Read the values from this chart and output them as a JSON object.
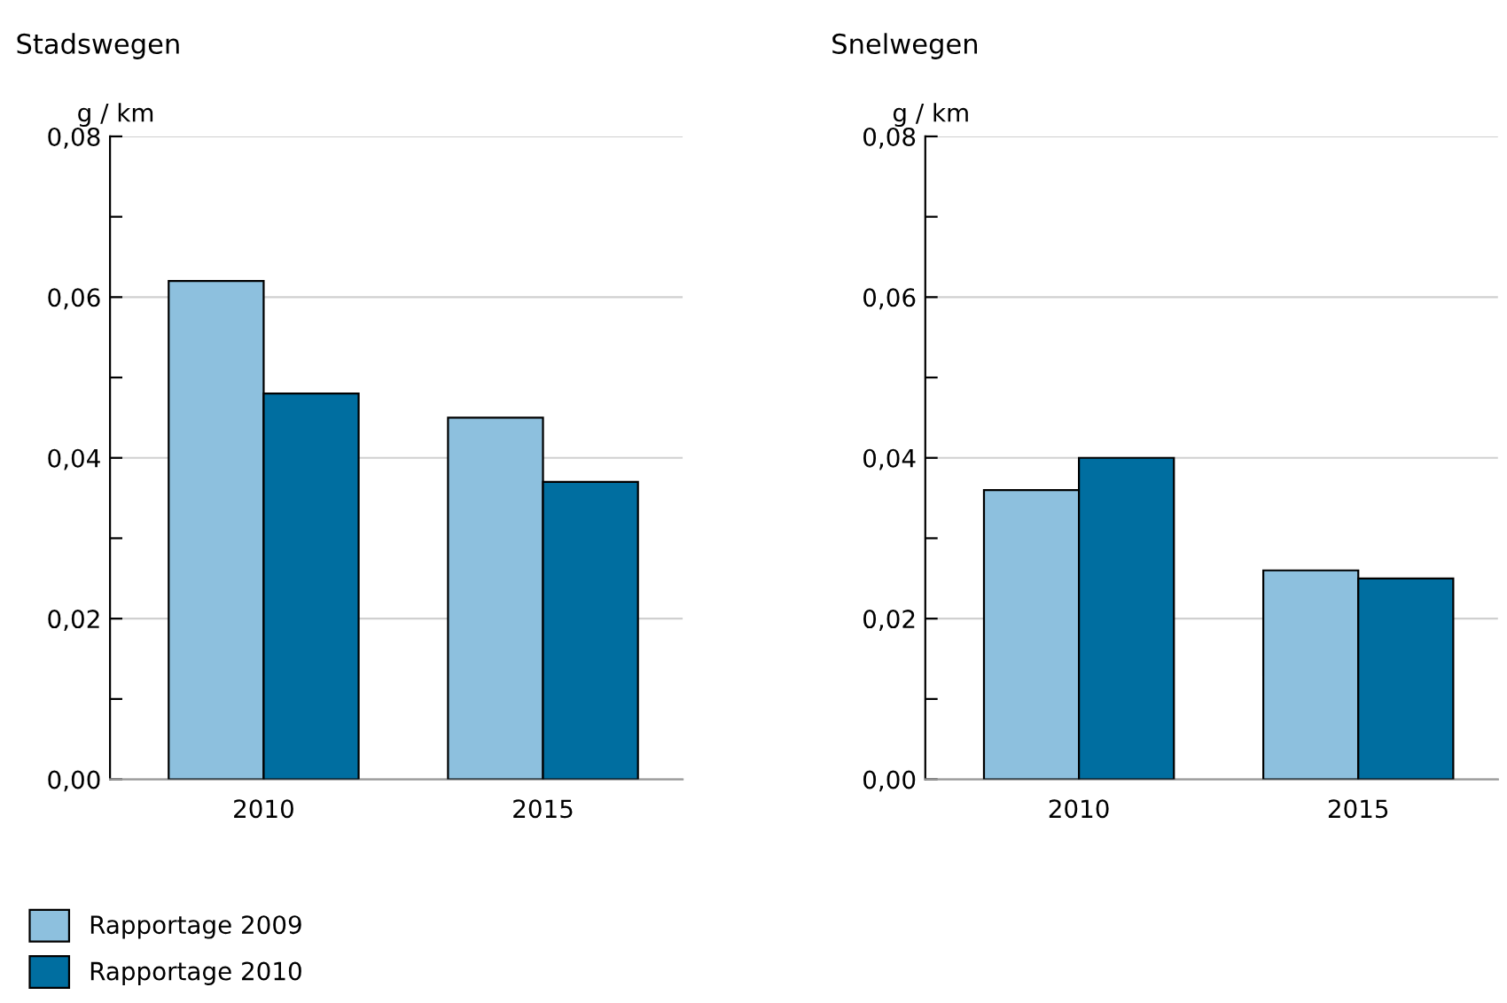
{
  "chart_data": [
    {
      "type": "bar",
      "title": "Stadswegen",
      "ylabel": "g / km",
      "categories": [
        "2010",
        "2015"
      ],
      "series": [
        {
          "name": "Rapportage 2009",
          "color": "#8dc0de",
          "values": [
            0.062,
            0.045
          ]
        },
        {
          "name": "Rapportage 2010",
          "color": "#006ea0",
          "values": [
            0.048,
            0.037
          ]
        }
      ],
      "ylim": [
        0,
        0.08
      ],
      "yticks": [
        {
          "value": 0,
          "label": "0,00"
        },
        {
          "value": 0.01,
          "label": null
        },
        {
          "value": 0.02,
          "label": "0,02"
        },
        {
          "value": 0.03,
          "label": null
        },
        {
          "value": 0.04,
          "label": "0,04"
        },
        {
          "value": 0.05,
          "label": null
        },
        {
          "value": 0.06,
          "label": "0,06"
        },
        {
          "value": 0.07,
          "label": null
        },
        {
          "value": 0.08,
          "label": "0,08"
        }
      ],
      "grid": "y",
      "legend": "bottom"
    },
    {
      "type": "bar",
      "title": "Snelwegen",
      "ylabel": "g / km",
      "categories": [
        "2010",
        "2015"
      ],
      "series": [
        {
          "color": "#8dc0de",
          "values": [
            0.036,
            0.026
          ]
        },
        {
          "color": "#006ea0",
          "values": [
            0.04,
            0.025
          ]
        }
      ],
      "ylim": [
        0,
        0.08
      ],
      "yticks": [
        {
          "value": 0,
          "label": "0,00"
        },
        {
          "value": 0.01,
          "label": null
        },
        {
          "value": 0.02,
          "label": "0,02"
        },
        {
          "value": 0.03,
          "label": null
        },
        {
          "value": 0.04,
          "label": "0,04"
        },
        {
          "value": 0.05,
          "label": null
        },
        {
          "value": 0.06,
          "label": "0,06"
        },
        {
          "value": 0.07,
          "label": null
        },
        {
          "value": 0.08,
          "label": "0,08"
        }
      ],
      "grid": "y"
    }
  ]
}
